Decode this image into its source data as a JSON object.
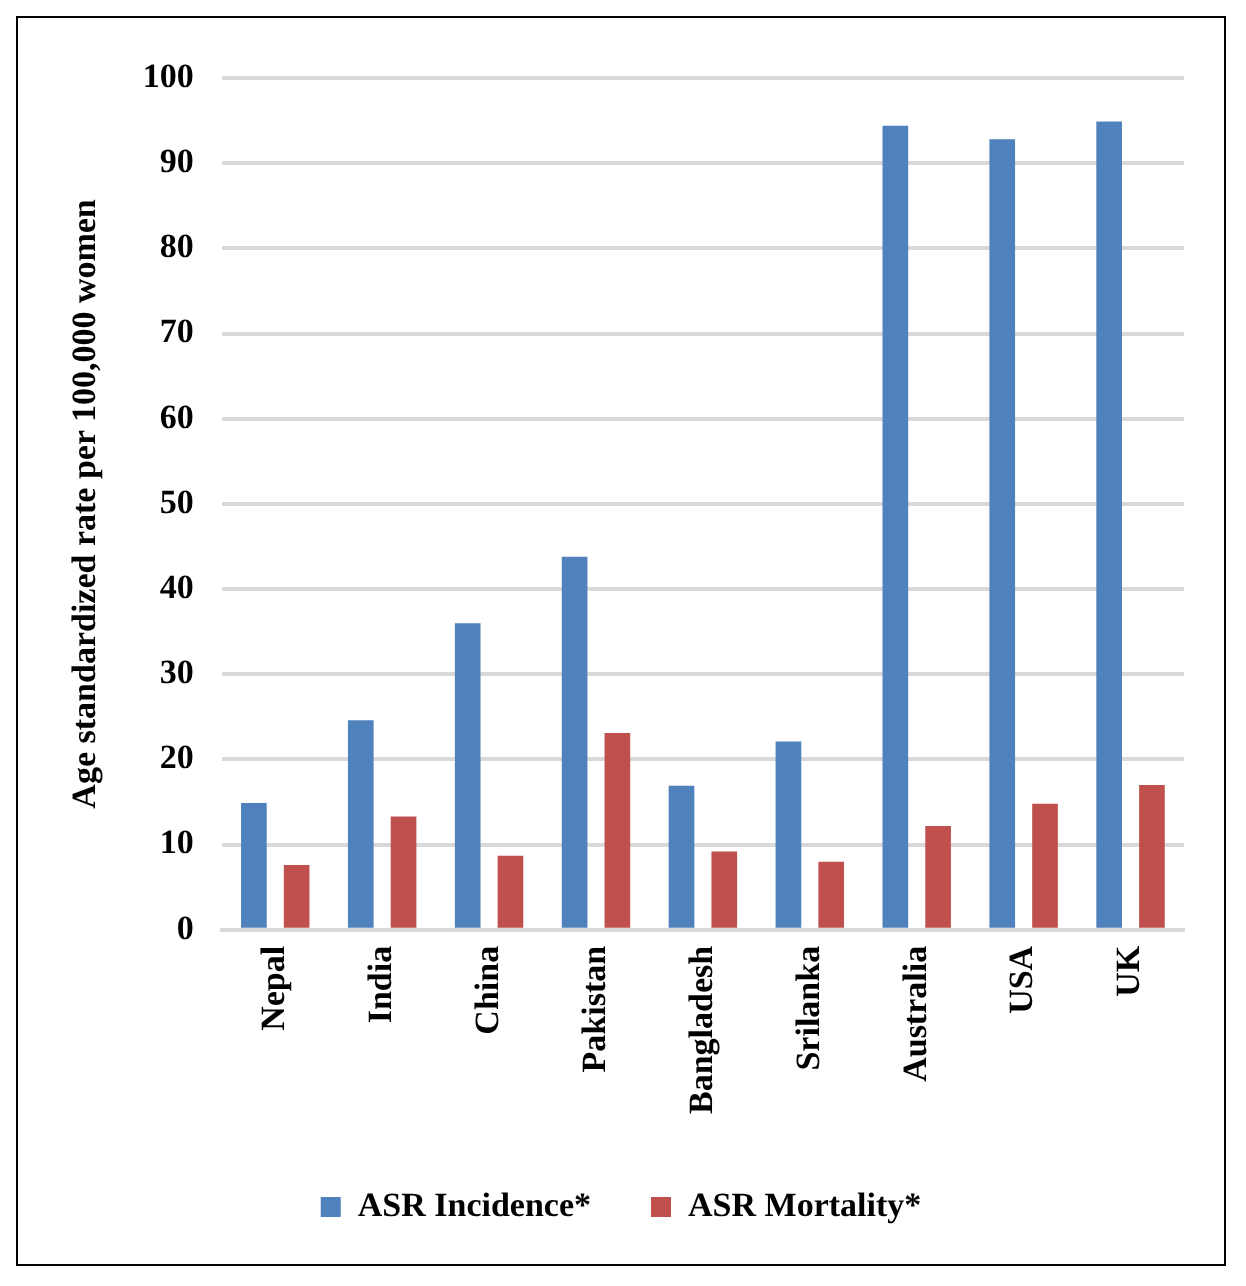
{
  "chart_data": {
    "type": "bar",
    "ylabel": "Age standardized rate per 100,000 women",
    "categories": [
      "Nepal",
      "India",
      "China",
      "Pakistan",
      "Bangladesh",
      "Srilanka",
      "Australia",
      "USA",
      "UK"
    ],
    "series": [
      {
        "name": "ASR Incidence*",
        "color": "#4f81bd",
        "values": [
          14.9,
          24.6,
          36.0,
          43.8,
          16.9,
          22.1,
          94.4,
          92.8,
          94.9
        ]
      },
      {
        "name": "ASR Mortality*",
        "color": "#c0504d",
        "values": [
          7.6,
          13.3,
          8.7,
          23.1,
          9.2,
          8.0,
          12.2,
          14.8,
          17.0
        ]
      }
    ],
    "ylim": [
      0,
      100
    ],
    "yticks": [
      0,
      10,
      20,
      30,
      40,
      50,
      60,
      70,
      80,
      90,
      100
    ],
    "grid": "y",
    "legend": "bottom"
  }
}
